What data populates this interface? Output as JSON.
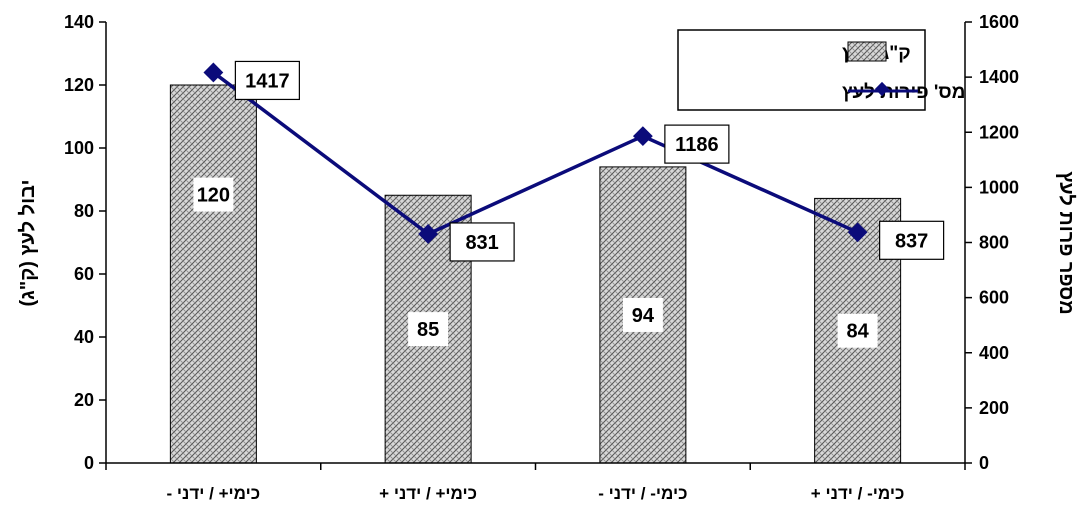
{
  "chart_data": {
    "type": "bar",
    "categories": [
      "כימי+ / ידני -",
      "כימי+ / ידני +",
      "כימי- / ידני -",
      "כימי- / ידני +"
    ],
    "series": [
      {
        "name": "ק\"ג לעץ",
        "type": "bar",
        "axis": "left",
        "values": [
          120,
          85,
          94,
          84
        ]
      },
      {
        "name": "מס' פירות לעץ",
        "type": "line",
        "axis": "right",
        "values": [
          1417,
          831,
          1186,
          837
        ]
      }
    ],
    "ylabel": "יבול לעץ (ק\"ג)",
    "y2label": "מספר פרות לעץ",
    "ylim": [
      0,
      140
    ],
    "y2lim": [
      0,
      1600
    ],
    "yticks": [
      0,
      20,
      40,
      60,
      80,
      100,
      120,
      140
    ],
    "y2ticks": [
      0,
      200,
      400,
      600,
      800,
      1000,
      1200,
      1400,
      1600
    ],
    "grid": false,
    "legend_position": "top-right",
    "colors": {
      "bar_fill": "#bdbdbd",
      "bar_pattern": "#4a4a4a",
      "line": "#0b0b7a",
      "marker": "#0b0b7a",
      "axis": "#000000"
    }
  }
}
